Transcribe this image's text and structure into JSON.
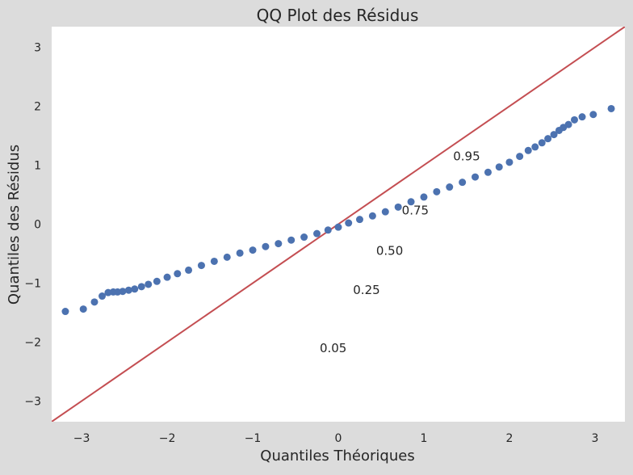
{
  "chart_data": {
    "type": "scatter",
    "title": "QQ Plot des Résidus",
    "xlabel": "Quantiles Théoriques",
    "ylabel": "Quantiles des Résidus",
    "xlim": [
      -3.35,
      3.35
    ],
    "ylim": [
      -3.35,
      3.35
    ],
    "grid": false,
    "xticks": [
      -3,
      -2,
      -1,
      0,
      1,
      2,
      3
    ],
    "yticks": [
      -3,
      -2,
      -1,
      0,
      1,
      2,
      3
    ],
    "xtick_labels": [
      "−3",
      "−2",
      "−1",
      "0",
      "1",
      "2",
      "3"
    ],
    "ytick_labels": [
      "−3",
      "−2",
      "−1",
      "0",
      "1",
      "2",
      "3"
    ],
    "reference_line": {
      "x": [
        -3.35,
        3.35
      ],
      "y": [
        -3.35,
        3.35
      ],
      "color": "#c44e52"
    },
    "marker_color": "#4c72b0",
    "series": [
      {
        "x": [
          -3.19,
          -2.98,
          -2.85,
          -2.76,
          -2.69,
          -2.63,
          -2.58,
          -2.52,
          -2.45,
          -2.38,
          -2.3,
          -2.22,
          -2.12,
          -2.0,
          -1.88,
          -1.75,
          -1.6,
          -1.45,
          -1.3,
          -1.15,
          -1.0,
          -0.85,
          -0.7,
          -0.55,
          -0.4,
          -0.25,
          -0.12,
          0.0,
          0.12,
          0.25,
          0.4,
          0.55,
          0.7,
          0.85,
          1.0,
          1.15,
          1.3,
          1.45,
          1.6,
          1.75,
          1.88,
          2.0,
          2.12,
          2.22,
          2.3,
          2.38,
          2.45,
          2.52,
          2.58,
          2.63,
          2.69,
          2.76,
          2.85,
          2.98,
          3.19
        ],
        "y": [
          -1.48,
          -1.44,
          -1.32,
          -1.22,
          -1.16,
          -1.15,
          -1.15,
          -1.14,
          -1.12,
          -1.1,
          -1.06,
          -1.02,
          -0.97,
          -0.9,
          -0.84,
          -0.78,
          -0.7,
          -0.63,
          -0.56,
          -0.49,
          -0.44,
          -0.38,
          -0.33,
          -0.27,
          -0.22,
          -0.16,
          -0.1,
          -0.05,
          0.02,
          0.08,
          0.14,
          0.21,
          0.29,
          0.38,
          0.46,
          0.55,
          0.63,
          0.71,
          0.8,
          0.88,
          0.97,
          1.05,
          1.15,
          1.25,
          1.31,
          1.38,
          1.45,
          1.52,
          1.59,
          1.64,
          1.69,
          1.77,
          1.82,
          1.86,
          1.96
        ]
      }
    ],
    "annotations": [
      {
        "text": "0.95",
        "x": 1.5,
        "y": 1.15
      },
      {
        "text": "0.75",
        "x": 0.9,
        "y": 0.23
      },
      {
        "text": "0.50",
        "x": 0.6,
        "y": -0.45
      },
      {
        "text": "0.25",
        "x": 0.33,
        "y": -1.12
      },
      {
        "text": "0.05",
        "x": -0.06,
        "y": -2.1
      }
    ]
  }
}
